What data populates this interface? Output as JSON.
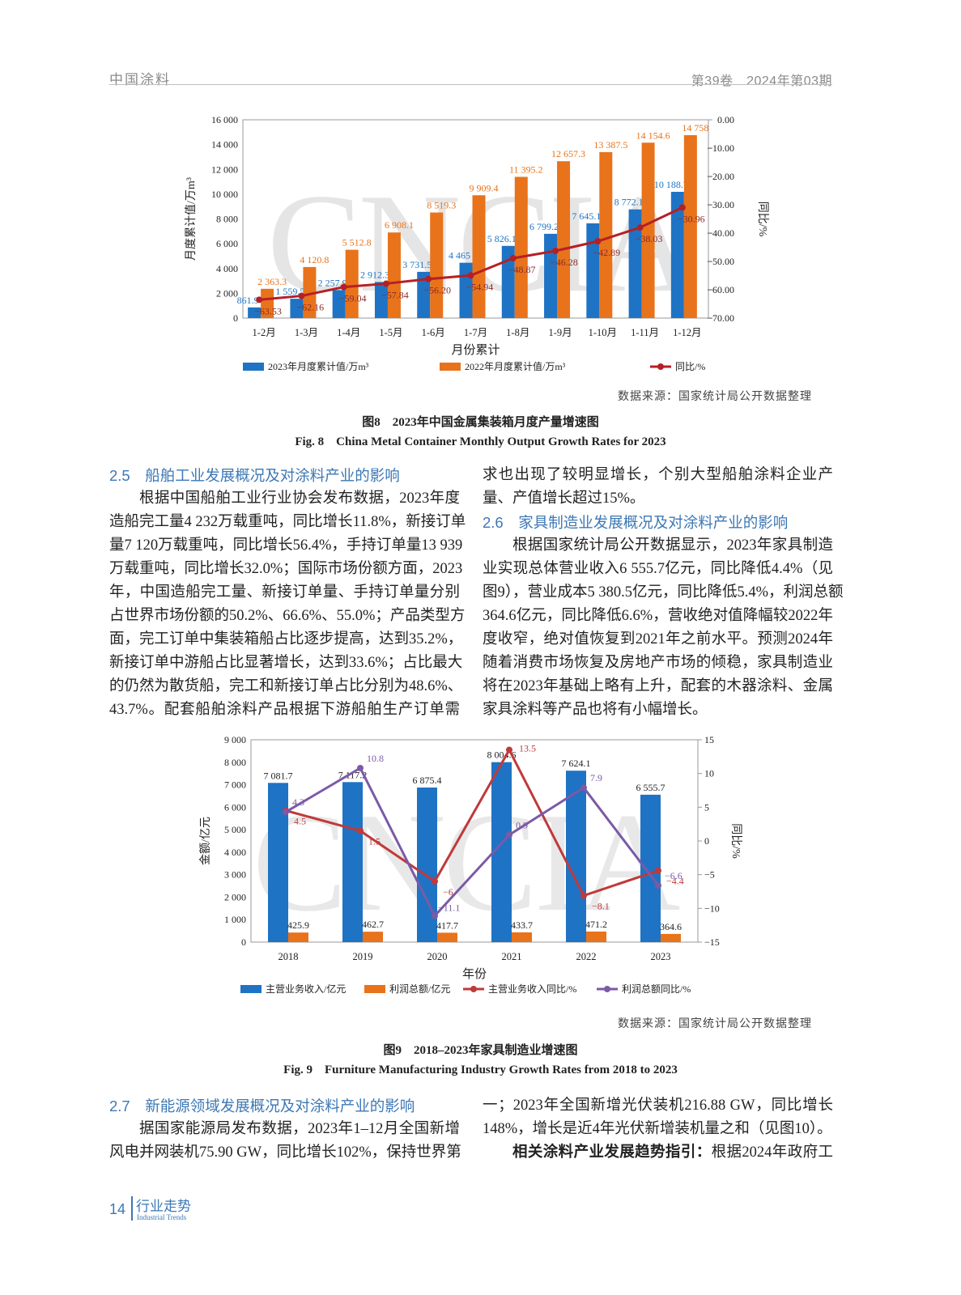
{
  "header": {
    "journal": "中国涂料",
    "issue": "第39卷　2024年第03期"
  },
  "watermark": "CNCIA",
  "figure8": {
    "source": "数据来源：国家统计局公开数据整理",
    "caption_cn": "图8　2023年中国金属集装箱月度产量增速图",
    "caption_en": "Fig. 8　China Metal Container Monthly Output Growth Rates for 2023"
  },
  "figure9": {
    "source": "数据来源：国家统计局公开数据整理",
    "caption_cn": "图9　2018–2023年家具制造业增速图",
    "caption_en": "Fig. 9　Furniture Manufacturing Industry Growth Rates from 2018 to 2023"
  },
  "chart_data": [
    {
      "type": "bar",
      "title": "2023年中国金属集装箱月度产量增速图",
      "xlabel": "月份累计",
      "ylabel": "月度累计值/万m³",
      "y2label": "同比/%",
      "categories": [
        "1-2月",
        "1-3月",
        "1-4月",
        "1-5月",
        "1-6月",
        "1-7月",
        "1-8月",
        "1-9月",
        "1-10月",
        "1-11月",
        "1-12月"
      ],
      "ylim": [
        0,
        16000
      ],
      "y2lim": [
        -70,
        0
      ],
      "yticks": [
        "0",
        "2 000",
        "4 000",
        "6 000",
        "8 000",
        "10 000",
        "12 000",
        "14 000",
        "16 000"
      ],
      "y2ticks": [
        "0.00",
        "−10.00",
        "−20.00",
        "−30.00",
        "−40.00",
        "−50.00",
        "−60.00",
        "−70.00"
      ],
      "series": [
        {
          "name": "2023年月度累计值/万m³",
          "kind": "bar",
          "color": "#1f73c4",
          "values": [
            861.9,
            1559.5,
            2257.9,
            2912.3,
            3731.5,
            4465,
            5826.1,
            6799.2,
            7645.1,
            8772.1,
            10188.7
          ],
          "labels": [
            "861.9",
            "1 559.5",
            "2 257.9",
            "2 912.3",
            "3 731.5",
            "4 465",
            "5 826.1",
            "6 799.2",
            "7 645.1",
            "8 772.1",
            "10 188.7"
          ]
        },
        {
          "name": "2022年月度累计值/万m³",
          "kind": "bar",
          "color": "#e8731b",
          "values": [
            2363.3,
            4120.8,
            5512.8,
            6908.1,
            8519.3,
            9909.4,
            11395.2,
            12657.3,
            13387.5,
            14154.6,
            14758
          ],
          "labels": [
            "2 363.3",
            "4 120.8",
            "5 512.8",
            "6 908.1",
            "8 519.3",
            "9 909.4",
            "11 395.2",
            "12 657.3",
            "13 387.5",
            "14 154.6",
            "14 758"
          ]
        },
        {
          "name": "同比/%",
          "kind": "line",
          "axis": "right",
          "color": "#b52025",
          "values": [
            -63.53,
            -62.16,
            -59.04,
            -57.84,
            -56.2,
            -54.94,
            -48.87,
            -46.28,
            -42.89,
            -38.03,
            -30.96
          ],
          "labels": [
            "−63.53",
            "−62.16",
            "−59.04",
            "−57.84",
            "−56.20",
            "−54.94",
            "−48.87",
            "−46.28",
            "−42.89",
            "−38.03",
            "−30.96"
          ]
        }
      ],
      "grid": false,
      "legend": "bottom"
    },
    {
      "type": "bar",
      "title": "2018–2023年家具制造业增速图",
      "xlabel": "年份",
      "ylabel": "金额/亿元",
      "y2label": "同比/%",
      "categories": [
        "2018",
        "2019",
        "2020",
        "2021",
        "2022",
        "2023"
      ],
      "ylim": [
        0,
        9000
      ],
      "y2lim": [
        -15,
        15
      ],
      "yticks": [
        "0",
        "1 000",
        "2 000",
        "3 000",
        "4 000",
        "5 000",
        "6 000",
        "7 000",
        "8 000",
        "9 000"
      ],
      "y2ticks": [
        "15",
        "10",
        "5",
        "0",
        "−5",
        "−10",
        "−15"
      ],
      "series": [
        {
          "name": "主营业务收入/亿元",
          "kind": "bar",
          "color": "#1f73c4",
          "values": [
            7081.7,
            7117.2,
            6875.4,
            8004.6,
            7624.1,
            6555.7
          ],
          "labels": [
            "7 081.7",
            "7 117.2",
            "6 875.4",
            "8 004.6",
            "7 624.1",
            "6 555.7"
          ]
        },
        {
          "name": "利润总额/亿元",
          "kind": "bar",
          "color": "#e8731b",
          "values": [
            425.9,
            462.7,
            417.7,
            433.7,
            471.2,
            364.6
          ],
          "labels": [
            "425.9",
            "462.7",
            "417.7",
            "433.7",
            "471.2",
            "364.6"
          ]
        },
        {
          "name": "主营业务收入同比/%",
          "kind": "line",
          "axis": "right",
          "color": "#c0393b",
          "values": [
            4.5,
            1.5,
            -6,
            13.5,
            -8.1,
            -4.4
          ],
          "labels": [
            "4.5",
            "1.5",
            "−6",
            "13.5",
            "−8.1",
            "−4.4"
          ]
        },
        {
          "name": "利润总额同比/%",
          "kind": "line",
          "axis": "right",
          "color": "#7b5aa6",
          "values": [
            4.3,
            10.8,
            -11.1,
            0.9,
            7.9,
            -6.6
          ],
          "labels": [
            "4.3",
            "10.8",
            "−11.1",
            "0.9",
            "7.9",
            "−6.6"
          ]
        }
      ],
      "grid": false,
      "legend": "bottom"
    }
  ],
  "left_col": {
    "heading": "2.5　船舶工业发展概况及对涂料产业的影响",
    "lines": [
      "根据中国船舶工业行业协会发布数据，2023年度",
      "造船完工量4 232万载重吨，同比增长11.8%，新接订单",
      "量7 120万载重吨，同比增长56.4%，手持订单量13 939",
      "万载重吨，同比增长32.0%；国际市场份额方面，2023",
      "年，中国造船完工量、新接订单量、手持订单量分别",
      "占世界市场份额的50.2%、66.6%、55.0%；产品类型方",
      "面，完工订单中集装箱船占比逐步提高，达到35.2%，",
      "新接订单中游船占比显著增长，达到33.6%；占比最大",
      "的仍然为散货船，完工和新接订单占比分别为48.6%、",
      "43.7%。配套船舶涂料产品根据下游船舶生产订单需"
    ]
  },
  "right_col": {
    "lines_top": [
      "求也出现了较明显增长，个别大型船舶涂料企业产",
      "量、产值增长超过15%。"
    ],
    "heading": "2.6　家具制造业发展概况及对涂料产业的影响",
    "lines": [
      "根据国家统计局公开数据显示，2023年家具制造",
      "业实现总体营业收入6 555.7亿元，同比降低4.4%（见",
      "图9），营业成本5 380.5亿元，同比降低5.4%，利润总额",
      "364.6亿元，同比降低6.6%，营收绝对值降幅较2022年",
      "度收窄，绝对值恢复到2021年之前水平。预测2024年",
      "随着消费市场恢复及房地产市场的倾稳，家具制造业",
      "将在2023年基础上略有上升，配套的木器涂料、金属",
      "家具涂料等产品也将有小幅增长。"
    ]
  },
  "bottom_left": {
    "heading": "2.7　新能源领域发展概况及对涂料产业的影响",
    "lines": [
      "据国家能源局发布数据，2023年1–12月全国新增",
      "风电并网装机75.90 GW，同比增长102%，保持世界第"
    ]
  },
  "bottom_right": {
    "lines": [
      "一；2023年全国新增光伏装机216.88 GW，同比增长",
      "148%，增长是近4年光伏新增装机量之和（见图10）。"
    ],
    "bold_lead": "相关涂料产业发展趋势指引：",
    "lead_rest": "根据2024年政府工"
  },
  "footer": {
    "page": "14",
    "section_cn": "行业走势",
    "section_en": "Industrial Trends"
  }
}
